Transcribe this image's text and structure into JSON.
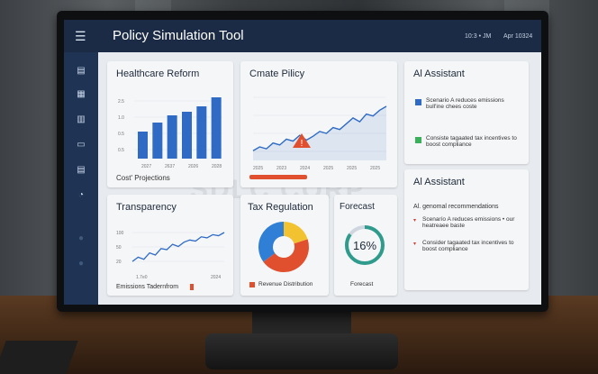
{
  "app": {
    "title": "Policy Simulation Tool",
    "time": "10:3 • JM",
    "date": "Apr 10324"
  },
  "watermark": "SDLC CORP",
  "sidebar": {
    "icons": [
      "document-icon",
      "file-icon",
      "bar-chart-icon",
      "folder-icon",
      "report-icon",
      "history-icon",
      "circle-icon",
      "circle-icon"
    ]
  },
  "healthcare": {
    "title": "Healthcare Reform",
    "caption": "Cost' Projections",
    "xticks": [
      "2027",
      "2637",
      "2026",
      "2028"
    ],
    "ylabels": [
      "2.5",
      "1.0",
      "0.5",
      "0.5"
    ],
    "values": [
      30,
      40,
      48,
      52,
      58,
      68
    ],
    "bar_color": "#2f6bc4"
  },
  "climate": {
    "title": "Cmate Pilicy",
    "xticks": [
      "2025",
      "2023",
      "2024",
      "2025",
      "2025",
      "2025"
    ],
    "series": [
      10,
      14,
      12,
      18,
      16,
      22,
      20,
      26,
      21,
      25,
      30,
      28,
      34,
      32,
      38,
      44,
      40,
      48,
      46,
      52,
      56
    ]
  },
  "ai1": {
    "title": "Al Assistant",
    "items": [
      {
        "text": "Scenario A reduces emissions bull'ine chees coste",
        "check": "blue"
      },
      {
        "text": "Consiste tagaated tax incentives to boost compliance",
        "check": "green"
      }
    ]
  },
  "transparency": {
    "title": "Transparency",
    "ylabels": [
      "100",
      "50",
      "20"
    ],
    "xticks": [
      "1.7e0",
      "2024"
    ],
    "caption": "Emissions Tadernfrom",
    "series": [
      10,
      14,
      12,
      18,
      16,
      22,
      21,
      26,
      24,
      28,
      30,
      29,
      33,
      32,
      35,
      34,
      37
    ]
  },
  "tax": {
    "title": "Tax Regulation",
    "legend": "Revenue Distribution",
    "slices": [
      {
        "value": 45,
        "color": "#e0502f"
      },
      {
        "value": 35,
        "color": "#2f7fd6"
      },
      {
        "value": 20,
        "color": "#f2c230"
      }
    ]
  },
  "forecast": {
    "title": "Forecast",
    "value": "16%",
    "caption": "Forecast"
  },
  "ai2": {
    "title": "Al Assistant",
    "subtitle": "Al. genomal recommendations",
    "items": [
      "Scenarío A reduces emissions • our heatreaee baste",
      "Consider tagaated tax incentives to boost compliance"
    ]
  }
}
